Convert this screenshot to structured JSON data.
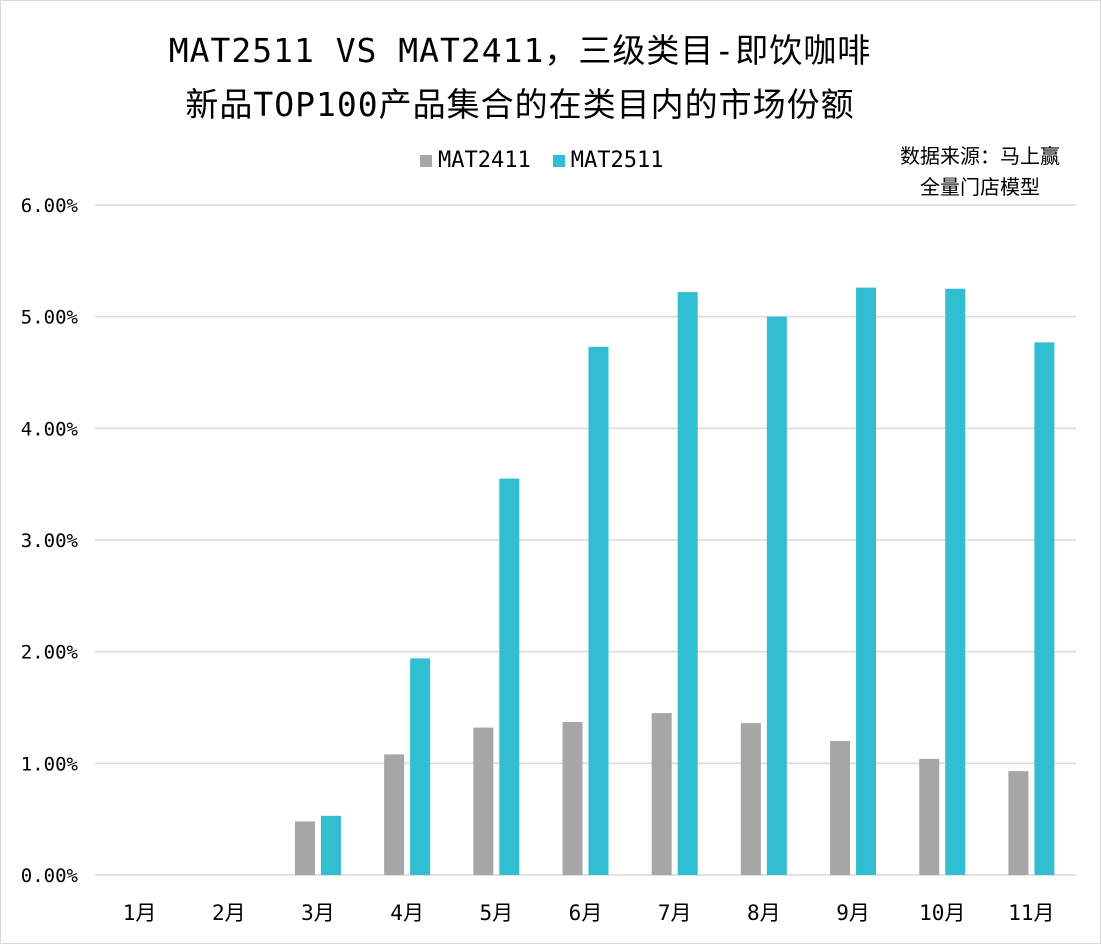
{
  "title_line1": "MAT2511 VS MAT2411，三级类目-即饮咖啡",
  "title_line2": "新品TOP100产品集合的在类目内的市场份额",
  "source_line1": "数据来源：马上赢",
  "source_line2": "全量门店模型",
  "chart_data": {
    "type": "bar",
    "title": "MAT2511 VS MAT2411，三级类目-即饮咖啡 新品TOP100产品集合的在类目内的市场份额",
    "xlabel": "",
    "ylabel": "",
    "categories": [
      "1月",
      "2月",
      "3月",
      "4月",
      "5月",
      "6月",
      "7月",
      "8月",
      "9月",
      "10月",
      "11月"
    ],
    "series": [
      {
        "name": "MAT2411",
        "color": "#a6a6a6",
        "values": [
          null,
          null,
          0.48,
          1.08,
          1.32,
          1.37,
          1.45,
          1.36,
          1.2,
          1.04,
          0.93
        ]
      },
      {
        "name": "MAT2511",
        "color": "#32bed2",
        "values": [
          null,
          null,
          0.53,
          1.94,
          3.55,
          4.73,
          5.22,
          5.0,
          5.26,
          5.25,
          4.77
        ]
      }
    ],
    "ylim": [
      0,
      6
    ],
    "yticks": [
      0,
      1,
      2,
      3,
      4,
      5,
      6
    ],
    "ytick_labels": [
      "0.00%",
      "1.00%",
      "2.00%",
      "3.00%",
      "4.00%",
      "5.00%",
      "6.00%"
    ],
    "grid": true,
    "legend_position": "top-center"
  }
}
